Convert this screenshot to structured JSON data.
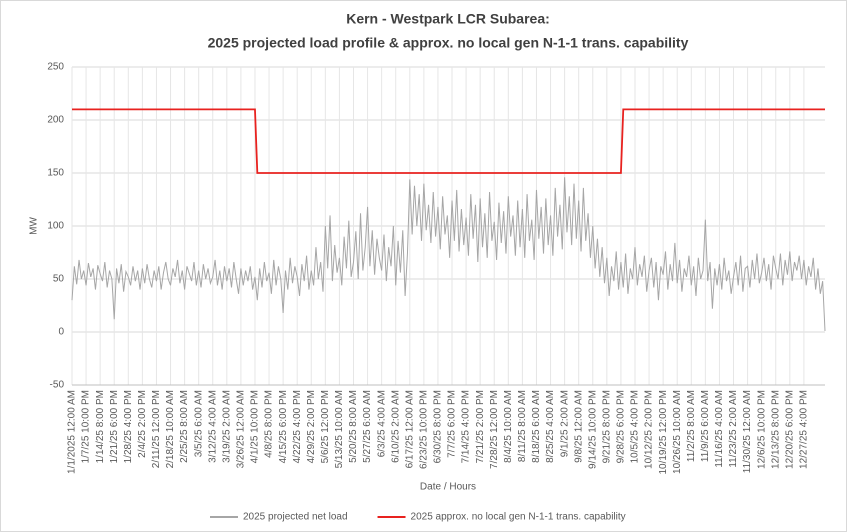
{
  "chart_data": {
    "type": "line",
    "title": [
      "Kern - Westpark LCR Subarea:",
      "2025 projected load profile & approx. no local gen N-1-1 trans. capability"
    ],
    "ylabel": "MW",
    "xlabel": "Date / Hours",
    "ylim": [
      -50,
      250
    ],
    "yticks": [
      -50,
      0,
      50,
      100,
      150,
      200,
      250
    ],
    "grid": true,
    "legend": "bottom",
    "categories": [
      "1/1/2025 12:00 AM",
      null,
      null,
      null,
      null,
      null,
      "1/7/25 10:00 PM",
      null,
      null,
      null,
      null,
      null,
      "1/14/25 8:00 PM",
      null,
      null,
      null,
      null,
      null,
      "1/21/25 6:00 PM",
      null,
      null,
      null,
      null,
      null,
      "1/28/25 4:00 PM",
      null,
      null,
      null,
      null,
      null,
      "2/4/25 2:00 PM",
      null,
      null,
      null,
      null,
      null,
      "2/11/25 12:00 PM",
      null,
      null,
      null,
      null,
      null,
      "2/18/25 10:00 AM",
      null,
      null,
      null,
      null,
      null,
      "2/25/25 8:00 AM",
      null,
      null,
      null,
      null,
      null,
      "3/5/25 6:00 AM",
      null,
      null,
      null,
      null,
      null,
      "3/12/25 4:00 AM",
      null,
      null,
      null,
      null,
      null,
      "3/19/25 2:00 AM",
      null,
      null,
      null,
      null,
      null,
      "3/26/25 12:00 AM",
      null,
      null,
      null,
      null,
      null,
      "4/1/25 10:00 PM",
      null,
      null,
      null,
      null,
      null,
      "4/8/25 8:00 PM",
      null,
      null,
      null,
      null,
      null,
      "4/15/25 6:00 PM",
      null,
      null,
      null,
      null,
      null,
      "4/22/25 4:00 PM",
      null,
      null,
      null,
      null,
      null,
      "4/29/25 2:00 PM",
      null,
      null,
      null,
      null,
      null,
      "5/6/25 12:00 PM",
      null,
      null,
      null,
      null,
      null,
      "5/13/25 10:00 AM",
      null,
      null,
      null,
      null,
      null,
      "5/20/25 8:00 AM",
      null,
      null,
      null,
      null,
      null,
      "5/27/25 6:00 AM",
      null,
      null,
      null,
      null,
      null,
      "6/3/25 4:00 AM",
      null,
      null,
      null,
      null,
      null,
      "6/10/25 2:00 AM",
      null,
      null,
      null,
      null,
      null,
      "6/17/25 12:00 AM",
      null,
      null,
      null,
      null,
      null,
      "6/23/25 10:00 PM",
      null,
      null,
      null,
      null,
      null,
      "6/30/25 8:00 PM",
      null,
      null,
      null,
      null,
      null,
      "7/7/25 6:00 PM",
      null,
      null,
      null,
      null,
      null,
      "7/14/25 4:00 PM",
      null,
      null,
      null,
      null,
      null,
      "7/21/25 2:00 PM",
      null,
      null,
      null,
      null,
      null,
      "7/28/25 12:00 PM",
      null,
      null,
      null,
      null,
      null,
      "8/4/25 10:00 AM",
      null,
      null,
      null,
      null,
      null,
      "8/11/25 8:00 AM",
      null,
      null,
      null,
      null,
      null,
      "8/18/25 6:00 AM",
      null,
      null,
      null,
      null,
      null,
      "8/25/25 4:00 AM",
      null,
      null,
      null,
      null,
      null,
      "9/1/25 2:00 AM",
      null,
      null,
      null,
      null,
      null,
      "9/8/25 12:00 AM",
      null,
      null,
      null,
      null,
      null,
      "9/14/25 10:00 PM",
      null,
      null,
      null,
      null,
      null,
      "9/21/25 8:00 PM",
      null,
      null,
      null,
      null,
      null,
      "9/28/25 6:00 PM",
      null,
      null,
      null,
      null,
      null,
      "10/5/25 4:00 PM",
      null,
      null,
      null,
      null,
      null,
      "10/12/25 2:00 PM",
      null,
      null,
      null,
      null,
      null,
      "10/19/25 12:00 PM",
      null,
      null,
      null,
      null,
      null,
      "10/26/25 10:00 AM",
      null,
      null,
      null,
      null,
      null,
      "11/2/25 8:00 AM",
      null,
      null,
      null,
      null,
      null,
      "11/9/25 6:00 AM",
      null,
      null,
      null,
      null,
      null,
      "11/16/25 4:00 AM",
      null,
      null,
      null,
      null,
      null,
      "11/23/25 2:00 AM",
      null,
      null,
      null,
      null,
      null,
      "11/30/25 12:00 AM",
      null,
      null,
      null,
      null,
      null,
      "12/6/25 10:00 PM",
      null,
      null,
      null,
      null,
      null,
      "12/13/25 8:00 PM",
      null,
      null,
      null,
      null,
      null,
      "12/20/25 6:00 PM",
      null,
      null,
      null,
      null,
      null,
      "12/27/25 4:00 PM",
      null,
      null,
      null,
      null,
      null,
      null,
      null,
      null,
      null
    ],
    "series": [
      {
        "name": "2025 projected net load",
        "color": "#a6a6a6",
        "values": [
          30,
          62,
          45,
          68,
          50,
          58,
          44,
          65,
          52,
          60,
          40,
          63,
          55,
          48,
          66,
          42,
          58,
          50,
          12,
          60,
          46,
          64,
          38,
          57,
          52,
          44,
          62,
          48,
          58,
          40,
          60,
          46,
          64,
          50,
          42,
          58,
          48,
          62,
          40,
          56,
          66,
          50,
          44,
          60,
          52,
          68,
          46,
          58,
          40,
          62,
          55,
          48,
          66,
          44,
          58,
          42,
          64,
          50,
          60,
          46,
          52,
          68,
          44,
          58,
          40,
          62,
          48,
          60,
          42,
          66,
          50,
          36,
          60,
          44,
          58,
          48,
          62,
          40,
          52,
          30,
          60,
          42,
          66,
          48,
          56,
          36,
          68,
          44,
          62,
          50,
          18,
          58,
          40,
          70,
          46,
          62,
          52,
          34,
          64,
          48,
          72,
          40,
          58,
          44,
          80,
          50,
          66,
          38,
          100,
          60,
          110,
          48,
          82,
          56,
          70,
          44,
          90,
          60,
          105,
          52,
          66,
          95,
          50,
          112,
          58,
          80,
          118,
          62,
          96,
          54,
          88,
          70,
          58,
          92,
          48,
          80,
          62,
          100,
          44,
          86,
          56,
          96,
          34,
          74,
          144,
          92,
          138,
          100,
          130,
          86,
          140,
          96,
          120,
          84,
          132,
          90,
          118,
          78,
          128,
          92,
          110,
          70,
          124,
          86,
          134,
          76,
          116,
          82,
          108,
          72,
          130,
          88,
          120,
          66,
          126,
          80,
          112,
          70,
          132,
          86,
          104,
          68,
          122,
          84,
          114,
          74,
          128,
          90,
          110,
          72,
          124,
          80,
          116,
          70,
          130,
          86,
          106,
          68,
          134,
          88,
          118,
          74,
          126,
          82,
          110,
          72,
          136,
          90,
          120,
          78,
          146,
          94,
          128,
          82,
          140,
          88,
          124,
          76,
          136,
          86,
          112,
          70,
          100,
          60,
          88,
          52,
          80,
          46,
          70,
          34,
          62,
          48,
          76,
          40,
          66,
          42,
          74,
          36,
          60,
          50,
          80,
          44,
          64,
          52,
          72,
          38,
          58,
          70,
          42,
          66,
          30,
          62,
          54,
          76,
          40,
          64,
          48,
          84,
          46,
          68,
          38,
          60,
          52,
          72,
          44,
          62,
          34,
          70,
          50,
          58,
          106,
          48,
          66,
          22,
          60,
          44,
          64,
          40,
          70,
          48,
          58,
          36,
          52,
          66,
          44,
          72,
          38,
          60,
          62,
          42,
          68,
          50,
          74,
          46,
          56,
          70,
          48,
          64,
          40,
          72,
          60,
          50,
          74,
          44,
          68,
          54,
          76,
          48,
          66,
          58,
          72,
          50,
          68,
          44,
          62,
          52,
          70,
          40,
          60,
          36,
          48,
          1
        ]
      },
      {
        "name": "2025 approx. no local gen N-1-1 trans. capability",
        "color": "#e8221f",
        "values": [
          210,
          210,
          210,
          210,
          210,
          210,
          210,
          210,
          210,
          210,
          210,
          210,
          210,
          210,
          210,
          210,
          210,
          210,
          210,
          210,
          210,
          210,
          210,
          210,
          210,
          210,
          210,
          210,
          210,
          210,
          210,
          210,
          210,
          210,
          210,
          210,
          210,
          210,
          210,
          210,
          210,
          210,
          210,
          210,
          210,
          210,
          210,
          210,
          210,
          210,
          210,
          210,
          210,
          210,
          210,
          210,
          210,
          210,
          210,
          210,
          210,
          210,
          210,
          210,
          210,
          210,
          210,
          210,
          210,
          210,
          210,
          210,
          210,
          210,
          210,
          210,
          210,
          210,
          210,
          150,
          150,
          150,
          150,
          150,
          150,
          150,
          150,
          150,
          150,
          150,
          150,
          150,
          150,
          150,
          150,
          150,
          150,
          150,
          150,
          150,
          150,
          150,
          150,
          150,
          150,
          150,
          150,
          150,
          150,
          150,
          150,
          150,
          150,
          150,
          150,
          150,
          150,
          150,
          150,
          150,
          150,
          150,
          150,
          150,
          150,
          150,
          150,
          150,
          150,
          150,
          150,
          150,
          150,
          150,
          150,
          150,
          150,
          150,
          150,
          150,
          150,
          150,
          150,
          150,
          150,
          150,
          150,
          150,
          150,
          150,
          150,
          150,
          150,
          150,
          150,
          150,
          150,
          150,
          150,
          150,
          150,
          150,
          150,
          150,
          150,
          150,
          150,
          150,
          150,
          150,
          150,
          150,
          150,
          150,
          150,
          150,
          150,
          150,
          150,
          150,
          150,
          150,
          150,
          150,
          150,
          150,
          150,
          150,
          150,
          150,
          150,
          150,
          150,
          150,
          150,
          150,
          150,
          150,
          150,
          150,
          150,
          150,
          150,
          150,
          150,
          150,
          150,
          150,
          150,
          150,
          150,
          150,
          150,
          150,
          150,
          150,
          150,
          150,
          150,
          150,
          150,
          150,
          150,
          150,
          150,
          150,
          150,
          150,
          150,
          150,
          150,
          150,
          150,
          150,
          150,
          210,
          210,
          210,
          210,
          210,
          210,
          210,
          210,
          210,
          210,
          210,
          210,
          210,
          210,
          210,
          210,
          210,
          210,
          210,
          210,
          210,
          210,
          210,
          210,
          210,
          210,
          210,
          210,
          210,
          210,
          210,
          210,
          210,
          210,
          210,
          210,
          210,
          210,
          210,
          210,
          210,
          210,
          210,
          210,
          210,
          210,
          210,
          210,
          210,
          210,
          210,
          210,
          210,
          210,
          210,
          210,
          210,
          210,
          210,
          210,
          210,
          210,
          210,
          210,
          210,
          210,
          210,
          210,
          210,
          210,
          210,
          210,
          210,
          210,
          210,
          210,
          210,
          210,
          210,
          210,
          210,
          210,
          210,
          210,
          210,
          210,
          210
        ]
      }
    ]
  }
}
